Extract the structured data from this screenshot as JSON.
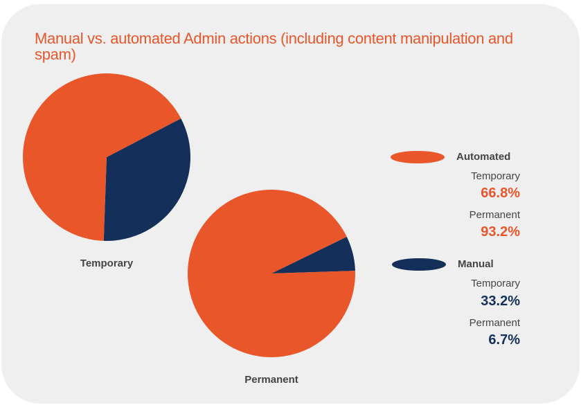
{
  "chart_data": {
    "type": "pie",
    "title": "Manual vs. automated Admin actions (including content manipulation and spam)",
    "categories": [
      "Automated",
      "Manual"
    ],
    "colors": {
      "Automated": "#e8562a",
      "Manual": "#14305a"
    },
    "pies": [
      {
        "name": "Temporary",
        "slices": [
          {
            "label": "Automated",
            "value": 66.8,
            "display": "66.8%"
          },
          {
            "label": "Manual",
            "value": 33.2,
            "display": "33.2%"
          }
        ]
      },
      {
        "name": "Permanent",
        "slices": [
          {
            "label": "Automated",
            "value": 93.2,
            "display": "93.2%"
          },
          {
            "label": "Manual",
            "value": 6.7,
            "display": "6.7%"
          }
        ]
      }
    ],
    "legend_position": "right"
  }
}
